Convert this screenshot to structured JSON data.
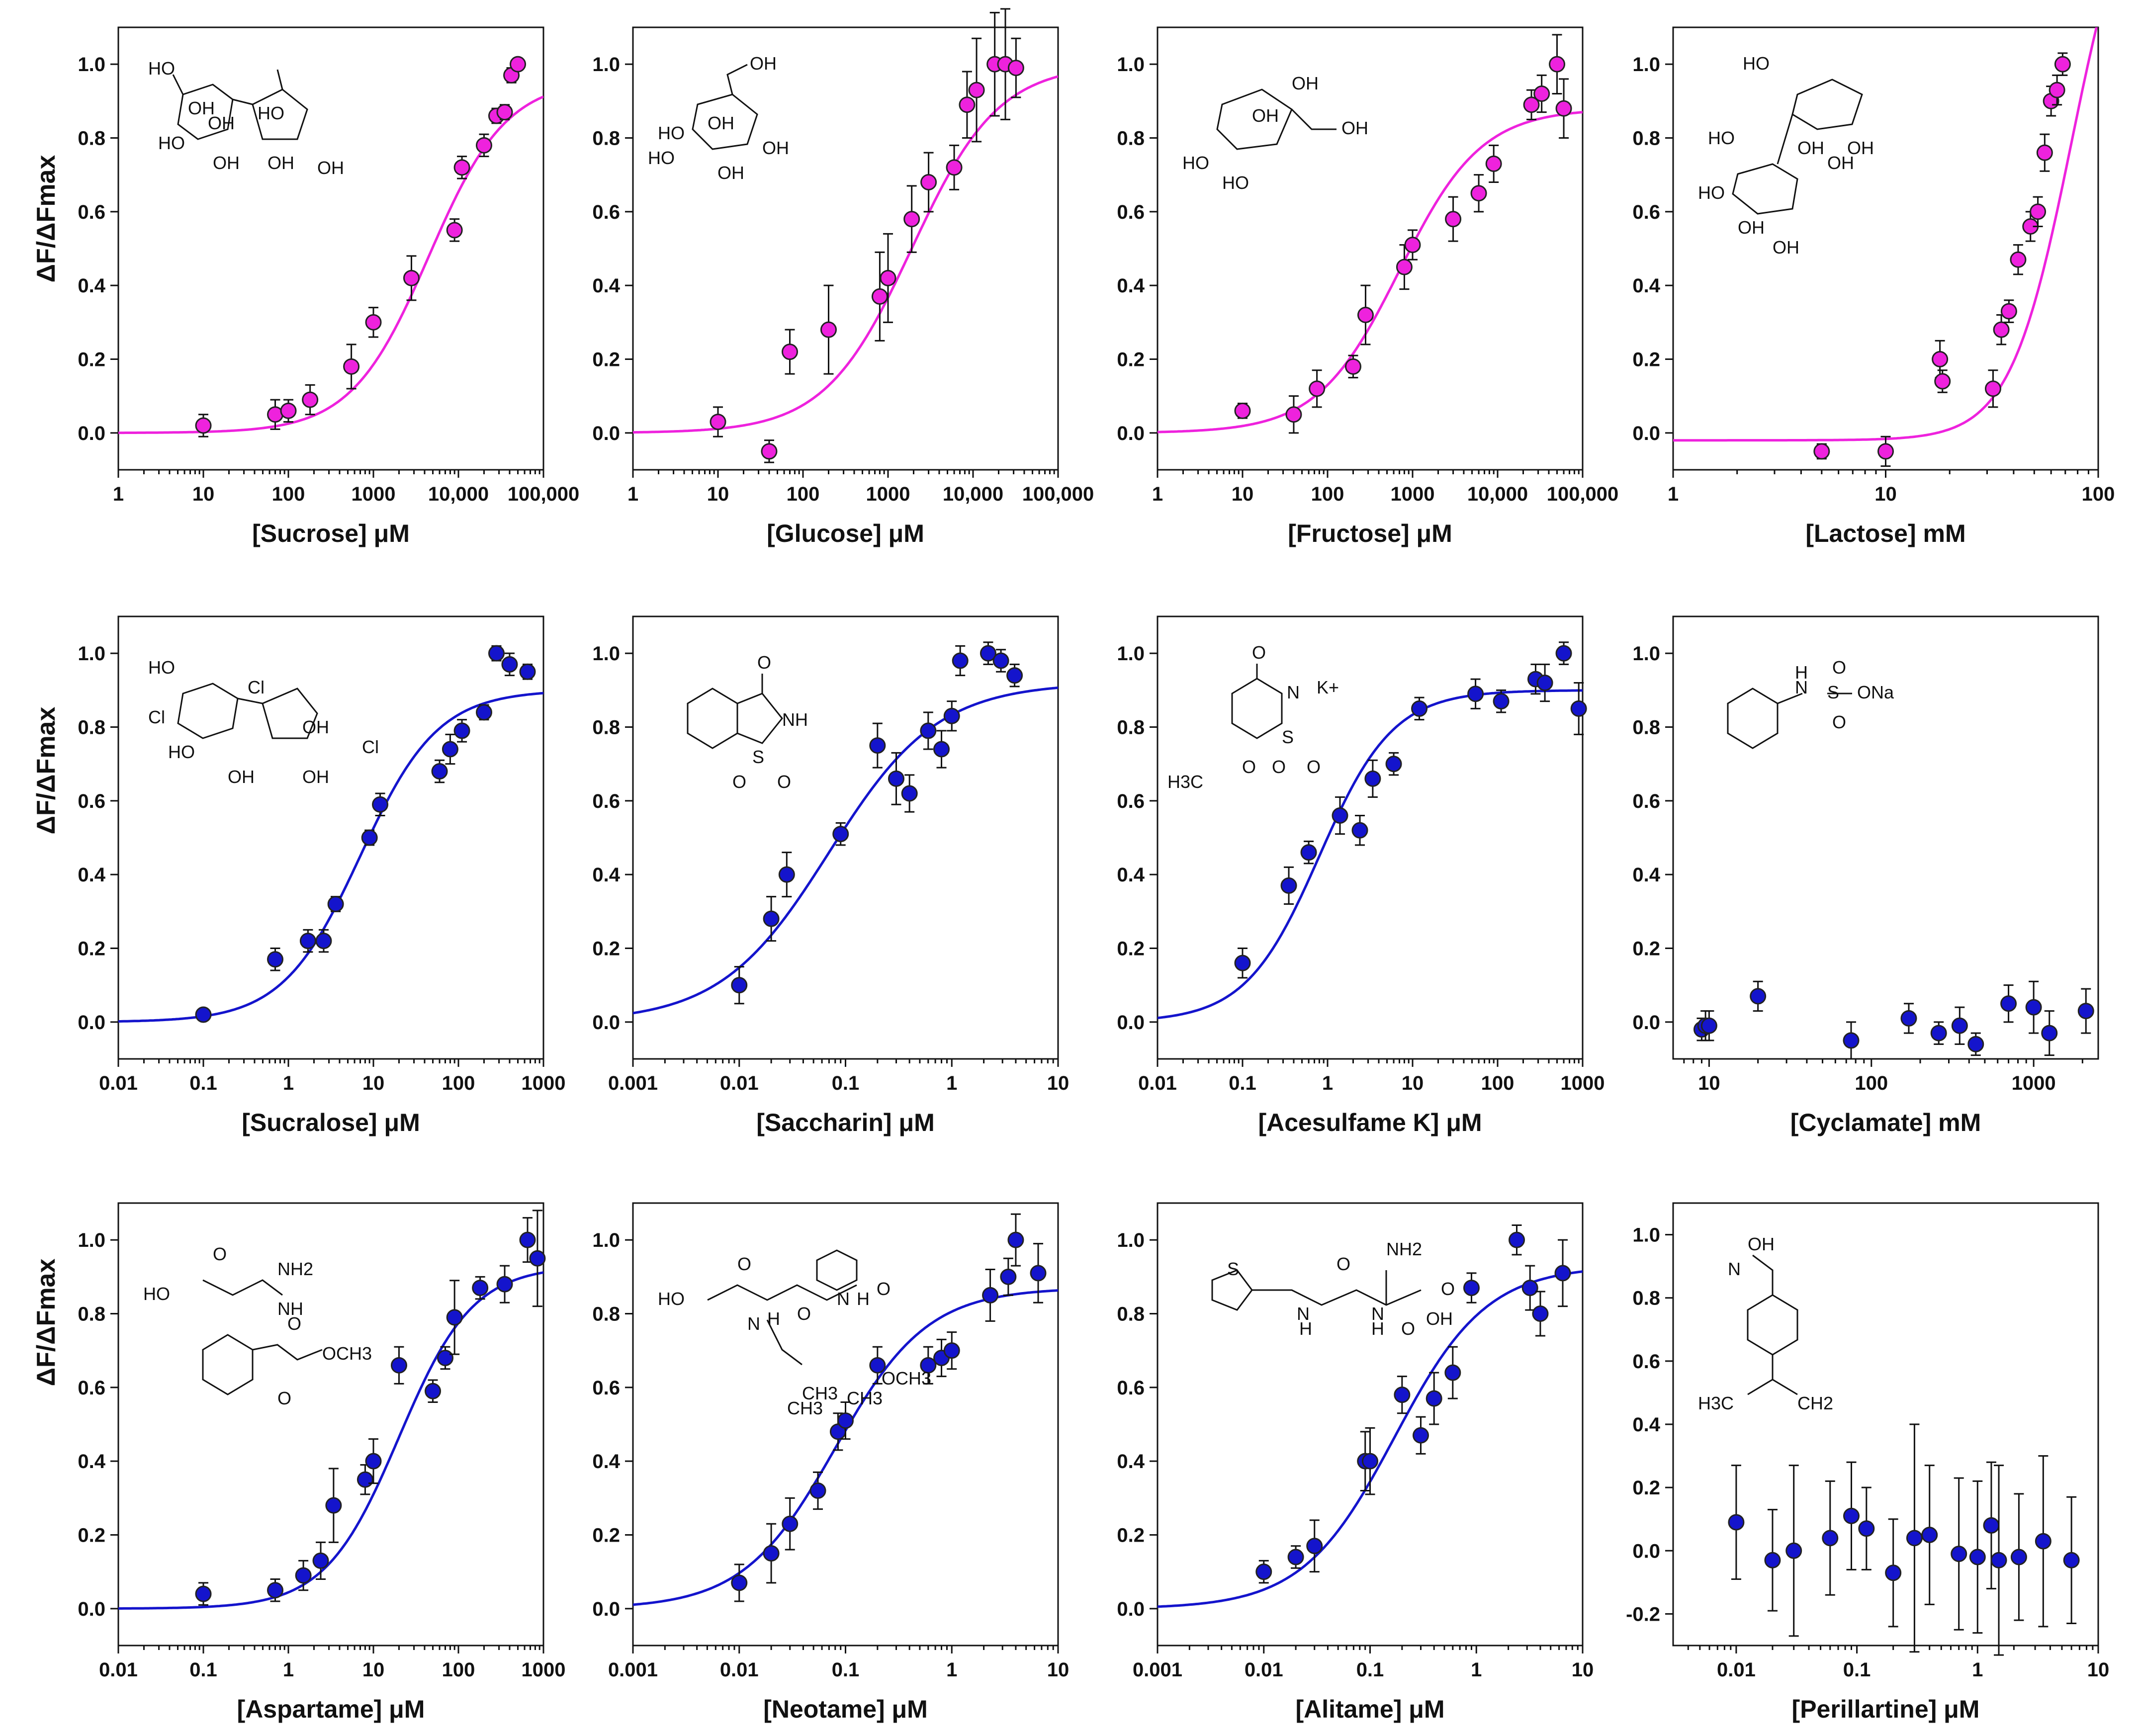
{
  "colors": {
    "sugar": "#ee22dd",
    "sweetener": "#1414cc",
    "axis": "#111111"
  },
  "ylabel": "ΔF/ΔFmax",
  "chart_data": [
    {
      "type": "scatter",
      "xlabel": "[Sucrose] μM",
      "scale": "log",
      "xlim": [
        1,
        100000
      ],
      "ylim": [
        -0.1,
        1.1
      ],
      "xticks": [
        1,
        10,
        100,
        1000,
        10000,
        100000
      ],
      "xticklabels": [
        "1",
        "10",
        "100",
        "1000",
        "10,000",
        "100,000"
      ],
      "yticks": [
        0,
        0.2,
        0.4,
        0.6,
        0.8,
        1.0
      ],
      "yticklabels": [
        "0.0",
        "0.2",
        "0.4",
        "0.6",
        "0.8",
        "1.0"
      ],
      "color": "sugar",
      "molecule": "sucrose",
      "mol_labels": [
        "HO",
        "OH",
        "OH",
        "HO",
        "OH",
        "HO",
        "OH",
        "OH"
      ],
      "fit": {
        "bottom": 0,
        "top": 0.96,
        "ec50": 4500,
        "hill": 0.95
      },
      "x": [
        10,
        70,
        100,
        180,
        550,
        1000,
        2800,
        9000,
        11000,
        20000,
        28000,
        35000,
        42000,
        50000
      ],
      "y": [
        0.02,
        0.05,
        0.06,
        0.09,
        0.18,
        0.3,
        0.42,
        0.55,
        0.72,
        0.78,
        0.86,
        0.87,
        0.97,
        1.0
      ],
      "err": [
        0.03,
        0.04,
        0.03,
        0.04,
        0.06,
        0.04,
        0.06,
        0.03,
        0.03,
        0.03,
        0.02,
        0.02,
        0.02,
        0.01
      ]
    },
    {
      "type": "scatter",
      "xlabel": "[Glucose] μM",
      "scale": "log",
      "xlim": [
        1,
        100000
      ],
      "ylim": [
        -0.1,
        1.1
      ],
      "xticks": [
        1,
        10,
        100,
        1000,
        10000,
        100000
      ],
      "xticklabels": [
        "1",
        "10",
        "100",
        "1000",
        "10,000",
        "100,000"
      ],
      "yticks": [
        0,
        0.2,
        0.4,
        0.6,
        0.8,
        1.0
      ],
      "yticklabels": [
        "0.0",
        "0.2",
        "0.4",
        "0.6",
        "0.8",
        "1.0"
      ],
      "color": "sugar",
      "molecule": "glucose",
      "mol_labels": [
        "OH",
        "HO",
        "OH",
        "HO",
        "OH",
        "OH"
      ],
      "fit": {
        "bottom": 0,
        "top": 1.0,
        "ec50": 1900,
        "hill": 0.85
      },
      "x": [
        10,
        40,
        70,
        200,
        800,
        1000,
        1900,
        3000,
        6000,
        8500,
        11000,
        18000,
        24000,
        32000
      ],
      "y": [
        0.03,
        -0.05,
        0.22,
        0.28,
        0.37,
        0.42,
        0.58,
        0.68,
        0.72,
        0.89,
        0.93,
        1.0,
        1.0,
        0.99
      ],
      "err": [
        0.04,
        0.03,
        0.06,
        0.12,
        0.12,
        0.12,
        0.09,
        0.08,
        0.06,
        0.09,
        0.14,
        0.14,
        0.15,
        0.08
      ]
    },
    {
      "type": "scatter",
      "xlabel": "[Fructose] μM",
      "scale": "log",
      "xlim": [
        1,
        100000
      ],
      "ylim": [
        -0.1,
        1.1
      ],
      "xticks": [
        1,
        10,
        100,
        1000,
        10000,
        100000
      ],
      "xticklabels": [
        "1",
        "10",
        "100",
        "1000",
        "10,000",
        "100,000"
      ],
      "yticks": [
        0,
        0.2,
        0.4,
        0.6,
        0.8,
        1.0
      ],
      "yticklabels": [
        "0.0",
        "0.2",
        "0.4",
        "0.6",
        "0.8",
        "1.0"
      ],
      "color": "sugar",
      "molecule": "fructose",
      "mol_labels": [
        "HO",
        "OH",
        "OH",
        "HO",
        "OH"
      ],
      "fit": {
        "bottom": 0,
        "top": 0.88,
        "ec50": 700,
        "hill": 0.9
      },
      "x": [
        10,
        40,
        75,
        200,
        280,
        800,
        1000,
        3000,
        6000,
        9000,
        25000,
        33000,
        50000,
        60000
      ],
      "y": [
        0.06,
        0.05,
        0.12,
        0.18,
        0.32,
        0.45,
        0.51,
        0.58,
        0.65,
        0.73,
        0.89,
        0.92,
        1.0,
        0.88
      ],
      "err": [
        0.02,
        0.05,
        0.05,
        0.03,
        0.08,
        0.06,
        0.04,
        0.06,
        0.05,
        0.05,
        0.04,
        0.05,
        0.08,
        0.08
      ]
    },
    {
      "type": "scatter",
      "xlabel": "[Lactose] mM",
      "scale": "log",
      "xlim": [
        1,
        100
      ],
      "ylim": [
        -0.1,
        1.1
      ],
      "xticks": [
        1,
        10,
        100
      ],
      "xticklabels": [
        "1",
        "10",
        "100"
      ],
      "yticks": [
        0,
        0.2,
        0.4,
        0.6,
        0.8,
        1.0
      ],
      "yticklabels": [
        "0.0",
        "0.2",
        "0.4",
        "0.6",
        "0.8",
        "1.0"
      ],
      "color": "sugar",
      "molecule": "lactose",
      "mol_labels": [
        "HO",
        "OH",
        "HO",
        "OH",
        "OH",
        "HO",
        "OH",
        "OH"
      ],
      "fit": {
        "bottom": -0.02,
        "top": 1.6,
        "ec50": 75,
        "hill": 3.0
      },
      "x": [
        5,
        10,
        18,
        18.5,
        32,
        35,
        38,
        42,
        48,
        52,
        56,
        60,
        64,
        68
      ],
      "y": [
        -0.05,
        -0.05,
        0.2,
        0.14,
        0.12,
        0.28,
        0.33,
        0.47,
        0.56,
        0.6,
        0.76,
        0.9,
        0.93,
        1.0
      ],
      "err": [
        0.02,
        0.04,
        0.05,
        0.03,
        0.05,
        0.04,
        0.03,
        0.04,
        0.04,
        0.04,
        0.05,
        0.04,
        0.04,
        0.03
      ]
    },
    {
      "type": "scatter",
      "xlabel": "[Sucralose] μM",
      "scale": "log",
      "xlim": [
        0.01,
        1000
      ],
      "ylim": [
        -0.1,
        1.1
      ],
      "xticks": [
        0.01,
        0.1,
        1,
        10,
        100,
        1000
      ],
      "xticklabels": [
        "0.01",
        "0.1",
        "1",
        "10",
        "100",
        "1000"
      ],
      "yticks": [
        0,
        0.2,
        0.4,
        0.6,
        0.8,
        1.0
      ],
      "yticklabels": [
        "0.0",
        "0.2",
        "0.4",
        "0.6",
        "0.8",
        "1.0"
      ],
      "color": "sweetener",
      "molecule": "sucralose",
      "mol_labels": [
        "HO",
        "Cl",
        "Cl",
        "HO",
        "OH",
        "OH",
        "Cl",
        "OH"
      ],
      "fit": {
        "bottom": 0,
        "top": 0.9,
        "ec50": 7,
        "hill": 0.95
      },
      "x": [
        0.1,
        0.7,
        1.7,
        2.6,
        3.6,
        9,
        12,
        60,
        80,
        110,
        200,
        280,
        400,
        650
      ],
      "y": [
        0.02,
        0.17,
        0.22,
        0.22,
        0.32,
        0.5,
        0.59,
        0.68,
        0.74,
        0.79,
        0.84,
        1.0,
        0.97,
        0.95
      ],
      "err": [
        0.01,
        0.03,
        0.03,
        0.03,
        0.02,
        0.02,
        0.03,
        0.03,
        0.04,
        0.03,
        0.02,
        0.02,
        0.03,
        0.02
      ]
    },
    {
      "type": "scatter",
      "xlabel": "[Saccharin] μM",
      "scale": "log",
      "xlim": [
        0.001,
        10
      ],
      "ylim": [
        -0.1,
        1.1
      ],
      "xticks": [
        0.001,
        0.01,
        0.1,
        1,
        10
      ],
      "xticklabels": [
        "0.001",
        "0.01",
        "0.1",
        "1",
        "10"
      ],
      "yticks": [
        0,
        0.2,
        0.4,
        0.6,
        0.8,
        1.0
      ],
      "yticklabels": [
        "0.0",
        "0.2",
        "0.4",
        "0.6",
        "0.8",
        "1.0"
      ],
      "color": "sweetener",
      "molecule": "saccharin",
      "mol_labels": [
        "O",
        "NH",
        "S",
        "O",
        "O"
      ],
      "fit": {
        "bottom": 0,
        "top": 0.92,
        "ec50": 0.07,
        "hill": 0.85
      },
      "x": [
        0.01,
        0.02,
        0.028,
        0.09,
        0.2,
        0.3,
        0.4,
        0.6,
        0.8,
        1.0,
        1.2,
        2.2,
        2.9,
        3.9
      ],
      "y": [
        0.1,
        0.28,
        0.4,
        0.51,
        0.75,
        0.66,
        0.62,
        0.79,
        0.74,
        0.83,
        0.98,
        1.0,
        0.98,
        0.94
      ],
      "err": [
        0.05,
        0.06,
        0.06,
        0.03,
        0.06,
        0.07,
        0.05,
        0.05,
        0.05,
        0.04,
        0.04,
        0.03,
        0.03,
        0.03
      ]
    },
    {
      "type": "scatter",
      "xlabel": "[Acesulfame K] μM",
      "scale": "log",
      "xlim": [
        0.01,
        1000
      ],
      "ylim": [
        -0.1,
        1.1
      ],
      "xticks": [
        0.01,
        0.1,
        1,
        10,
        100,
        1000
      ],
      "xticklabels": [
        "0.01",
        "0.1",
        "1",
        "10",
        "100",
        "1000"
      ],
      "yticks": [
        0,
        0.2,
        0.4,
        0.6,
        0.8,
        1.0
      ],
      "yticklabels": [
        "0.0",
        "0.2",
        "0.4",
        "0.6",
        "0.8",
        "1.0"
      ],
      "color": "sweetener",
      "molecule": "acesulfame",
      "mol_labels": [
        "O",
        "N",
        "K+",
        "S",
        "O",
        "O",
        "O",
        "H3C"
      ],
      "fit": {
        "bottom": 0,
        "top": 0.9,
        "ec50": 0.8,
        "hill": 1.0
      },
      "x": [
        0.1,
        0.35,
        0.6,
        1.4,
        2.4,
        3.4,
        6,
        12,
        55,
        110,
        280,
        360,
        600,
        900
      ],
      "y": [
        0.16,
        0.37,
        0.46,
        0.56,
        0.52,
        0.66,
        0.7,
        0.85,
        0.89,
        0.87,
        0.93,
        0.92,
        1.0,
        0.85
      ],
      "err": [
        0.04,
        0.05,
        0.03,
        0.05,
        0.04,
        0.05,
        0.03,
        0.03,
        0.04,
        0.03,
        0.04,
        0.05,
        0.03,
        0.07
      ]
    },
    {
      "type": "scatter",
      "xlabel": "[Cyclamate] mM",
      "scale": "log",
      "xlim": [
        6,
        2500
      ],
      "ylim": [
        -0.1,
        1.1
      ],
      "xticks": [
        10,
        100,
        1000
      ],
      "xticklabels": [
        "10",
        "100",
        "1000"
      ],
      "yticks": [
        0,
        0.2,
        0.4,
        0.6,
        0.8,
        1.0
      ],
      "yticklabels": [
        "0.0",
        "0.2",
        "0.4",
        "0.6",
        "0.8",
        "1.0"
      ],
      "color": "sweetener",
      "molecule": "cyclamate",
      "mol_labels": [
        "H",
        "N",
        "S",
        "O",
        "O",
        "ONa"
      ],
      "fit": null,
      "x": [
        9,
        9.5,
        10,
        20,
        75,
        170,
        260,
        350,
        440,
        700,
        1000,
        1250,
        2100
      ],
      "y": [
        -0.02,
        -0.01,
        -0.01,
        0.07,
        -0.05,
        0.01,
        -0.03,
        -0.01,
        -0.06,
        0.05,
        0.04,
        -0.03,
        0.03
      ],
      "err": [
        0.03,
        0.04,
        0.04,
        0.04,
        0.05,
        0.04,
        0.03,
        0.05,
        0.03,
        0.05,
        0.07,
        0.06,
        0.06
      ]
    },
    {
      "type": "scatter",
      "xlabel": "[Aspartame] μM",
      "scale": "log",
      "xlim": [
        0.01,
        1000
      ],
      "ylim": [
        -0.1,
        1.1
      ],
      "xticks": [
        0.01,
        0.1,
        1,
        10,
        100,
        1000
      ],
      "xticklabels": [
        "0.01",
        "0.1",
        "1",
        "10",
        "100",
        "1000"
      ],
      "yticks": [
        0,
        0.2,
        0.4,
        0.6,
        0.8,
        1.0
      ],
      "yticklabels": [
        "0.0",
        "0.2",
        "0.4",
        "0.6",
        "0.8",
        "1.0"
      ],
      "color": "sweetener",
      "molecule": "aspartame",
      "mol_labels": [
        "HO",
        "O",
        "NH2",
        "O",
        "NH",
        "OCH3",
        "O"
      ],
      "fit": {
        "bottom": 0,
        "top": 0.93,
        "ec50": 20,
        "hill": 1.0
      },
      "x": [
        0.1,
        0.7,
        1.5,
        2.4,
        3.4,
        8,
        10,
        20,
        50,
        70,
        90,
        180,
        350,
        650,
        850
      ],
      "y": [
        0.04,
        0.05,
        0.09,
        0.13,
        0.28,
        0.35,
        0.4,
        0.66,
        0.59,
        0.68,
        0.79,
        0.87,
        0.88,
        1.0,
        0.95
      ],
      "err": [
        0.03,
        0.03,
        0.04,
        0.05,
        0.1,
        0.04,
        0.06,
        0.05,
        0.03,
        0.03,
        0.1,
        0.03,
        0.05,
        0.06,
        0.13
      ]
    },
    {
      "type": "scatter",
      "xlabel": "[Neotame] μM",
      "scale": "log",
      "xlim": [
        0.001,
        10
      ],
      "ylim": [
        -0.1,
        1.1
      ],
      "xticks": [
        0.001,
        0.01,
        0.1,
        1,
        10
      ],
      "xticklabels": [
        "0.001",
        "0.01",
        "0.1",
        "1",
        "10"
      ],
      "yticks": [
        0,
        0.2,
        0.4,
        0.6,
        0.8,
        1.0
      ],
      "yticklabels": [
        "0.0",
        "0.2",
        "0.4",
        "0.6",
        "0.8",
        "1.0"
      ],
      "color": "sweetener",
      "molecule": "neotame",
      "mol_labels": [
        "HO",
        "O",
        "O",
        "N",
        "H",
        "N",
        "H",
        "O",
        "OCH3",
        "CH3",
        "CH3",
        "CH3"
      ],
      "fit": {
        "bottom": 0,
        "top": 0.87,
        "ec50": 0.08,
        "hill": 1.0
      },
      "x": [
        0.01,
        0.02,
        0.03,
        0.055,
        0.085,
        0.1,
        0.2,
        0.6,
        0.8,
        1.0,
        2.3,
        3.4,
        4.0,
        6.5
      ],
      "y": [
        0.07,
        0.15,
        0.23,
        0.32,
        0.48,
        0.51,
        0.66,
        0.66,
        0.68,
        0.7,
        0.85,
        0.9,
        1.0,
        0.91
      ],
      "err": [
        0.05,
        0.08,
        0.07,
        0.05,
        0.05,
        0.05,
        0.05,
        0.05,
        0.05,
        0.05,
        0.07,
        0.05,
        0.07,
        0.08
      ]
    },
    {
      "type": "scatter",
      "xlabel": "[Alitame] μM",
      "scale": "log",
      "xlim": [
        0.001,
        10
      ],
      "ylim": [
        -0.1,
        1.1
      ],
      "xticks": [
        0.001,
        0.01,
        0.1,
        1,
        10
      ],
      "xticklabels": [
        "0.001",
        "0.01",
        "0.1",
        "1",
        "10"
      ],
      "yticks": [
        0,
        0.2,
        0.4,
        0.6,
        0.8,
        1.0
      ],
      "yticklabels": [
        "0.0",
        "0.2",
        "0.4",
        "0.6",
        "0.8",
        "1.0"
      ],
      "color": "sweetener",
      "molecule": "alitame",
      "mol_labels": [
        "S",
        "N",
        "H",
        "O",
        "N",
        "H",
        "O",
        "NH2",
        "OH",
        "O"
      ],
      "fit": {
        "bottom": 0,
        "top": 0.93,
        "ec50": 0.17,
        "hill": 1.0
      },
      "x": [
        0.01,
        0.02,
        0.03,
        0.09,
        0.1,
        0.2,
        0.3,
        0.4,
        0.6,
        0.9,
        2.4,
        3.2,
        4.0,
        6.5
      ],
      "y": [
        0.1,
        0.14,
        0.17,
        0.4,
        0.4,
        0.58,
        0.47,
        0.57,
        0.64,
        0.87,
        1.0,
        0.87,
        0.8,
        0.91
      ],
      "err": [
        0.03,
        0.03,
        0.07,
        0.08,
        0.09,
        0.05,
        0.05,
        0.07,
        0.07,
        0.04,
        0.04,
        0.06,
        0.06,
        0.09
      ]
    },
    {
      "type": "scatter",
      "xlabel": "[Perillartine] μM",
      "scale": "log",
      "xlim": [
        0.003,
        10
      ],
      "ylim": [
        -0.3,
        1.1
      ],
      "xticks": [
        0.01,
        0.1,
        1,
        10
      ],
      "xticklabels": [
        "0.01",
        "0.1",
        "1",
        "10"
      ],
      "yticks": [
        -0.2,
        0,
        0.2,
        0.4,
        0.6,
        0.8,
        1.0
      ],
      "yticklabels": [
        "-0.2",
        "0.0",
        "0.2",
        "0.4",
        "0.6",
        "0.8",
        "1.0"
      ],
      "color": "sweetener",
      "molecule": "perillartine",
      "mol_labels": [
        "OH",
        "N",
        "H3C",
        "CH2"
      ],
      "fit": null,
      "x": [
        0.01,
        0.02,
        0.03,
        0.06,
        0.09,
        0.12,
        0.2,
        0.3,
        0.4,
        0.7,
        1.0,
        1.3,
        1.5,
        2.2,
        3.5,
        6
      ],
      "y": [
        0.09,
        -0.03,
        0.0,
        0.04,
        0.11,
        0.07,
        -0.07,
        0.04,
        0.05,
        -0.01,
        -0.02,
        0.08,
        -0.03,
        -0.02,
        0.03,
        -0.03
      ],
      "err": [
        0.18,
        0.16,
        0.27,
        0.18,
        0.17,
        0.13,
        0.17,
        0.36,
        0.22,
        0.24,
        0.24,
        0.2,
        0.3,
        0.2,
        0.27,
        0.2
      ]
    }
  ]
}
